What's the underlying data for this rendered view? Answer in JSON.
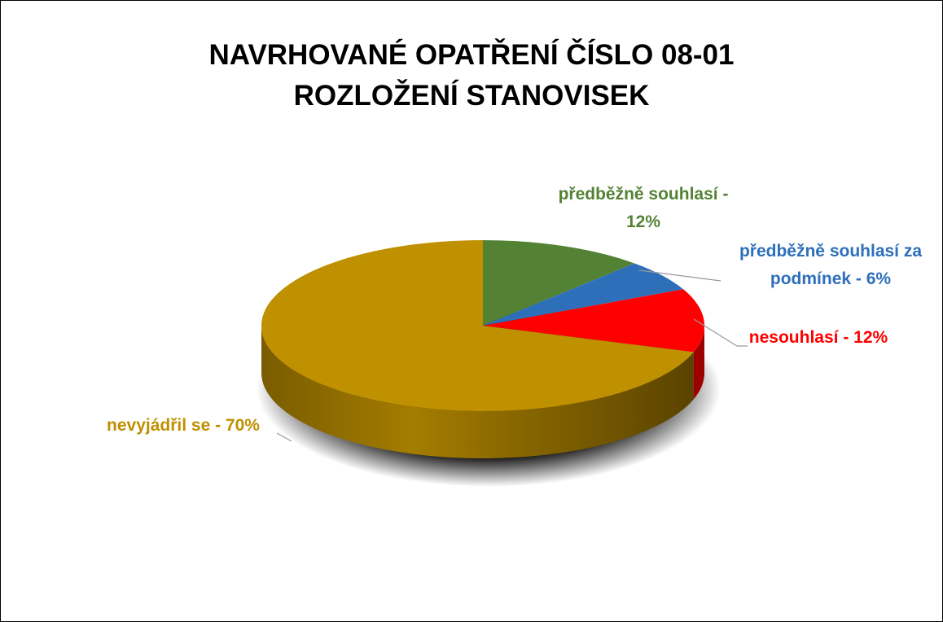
{
  "chart_data": {
    "type": "pie",
    "title": "NAVRHOVANÉ OPATŘENÍ ČÍSLO 08-01",
    "subtitle": "ROZLOŽENÍ STANOVISEK",
    "values": [
      12,
      6,
      12,
      70
    ],
    "value_labels": [
      "předběžně souhlasí - 12%",
      "předběžně souhlasí za podmínek - 6%",
      "nesouhlasí - 12%",
      "nevyjádřil se - 70%"
    ],
    "colors": [
      "#548235",
      "#2e6fba",
      "#ff0000",
      "#bf9000"
    ]
  }
}
